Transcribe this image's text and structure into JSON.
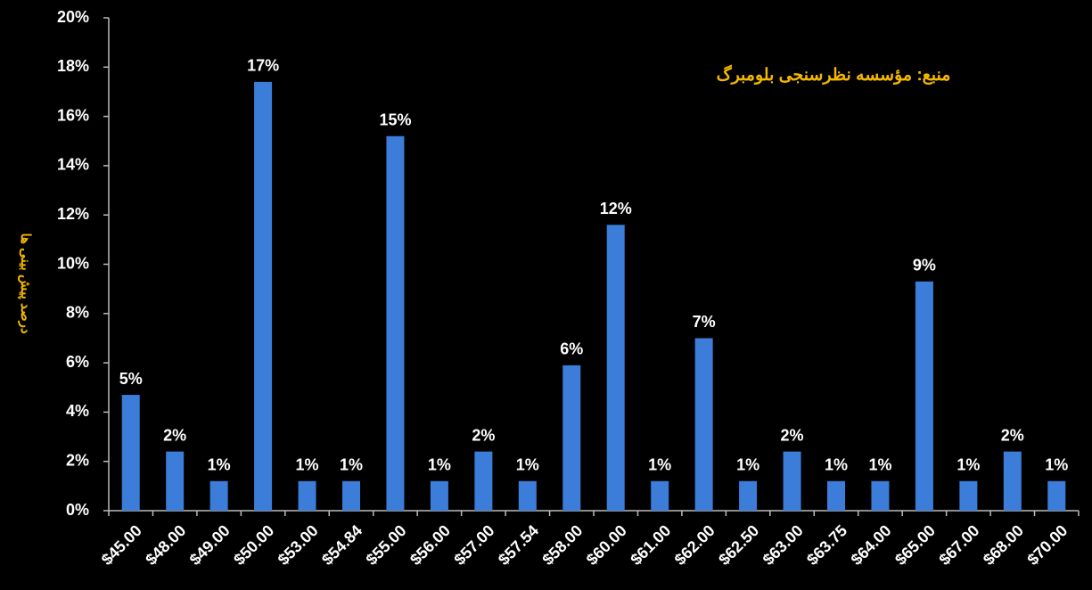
{
  "chart_data": {
    "type": "bar",
    "y_label": "درصد پیش بینی ها",
    "annotation": "منبع: مؤسسه نظرسنجی بلومبرگ",
    "categories": [
      "$45.00",
      "$48.00",
      "$49.00",
      "$50.00",
      "$53.00",
      "$54.84",
      "$55.00",
      "$56.00",
      "$57.00",
      "$57.54",
      "$58.00",
      "$60.00",
      "$61.00",
      "$62.00",
      "$62.50",
      "$63.00",
      "$63.75",
      "$64.00",
      "$65.00",
      "$67.00",
      "$68.00",
      "$70.00"
    ],
    "values": [
      4.7,
      2.4,
      1.2,
      17.4,
      1.2,
      1.2,
      15.2,
      1.2,
      2.4,
      1.2,
      5.9,
      11.6,
      1.2,
      7.0,
      1.2,
      2.4,
      1.2,
      1.2,
      9.3,
      1.2,
      2.4,
      1.2
    ],
    "value_labels": [
      "5%",
      "2%",
      "1%",
      "17%",
      "1%",
      "1%",
      "15%",
      "1%",
      "2%",
      "1%",
      "6%",
      "12%",
      "1%",
      "7%",
      "1%",
      "2%",
      "1%",
      "1%",
      "9%",
      "1%",
      "2%",
      "1%"
    ],
    "color": "#3b7dd8",
    "ylim": [
      0,
      20
    ],
    "yticks": [
      {
        "value": 0,
        "label": "0%"
      },
      {
        "value": 2,
        "label": "2%"
      },
      {
        "value": 4,
        "label": "4%"
      },
      {
        "value": 6,
        "label": "6%"
      },
      {
        "value": 8,
        "label": "8%"
      },
      {
        "value": 10,
        "label": "10%"
      },
      {
        "value": 12,
        "label": "12%"
      },
      {
        "value": 14,
        "label": "14%"
      },
      {
        "value": 16,
        "label": "16%"
      },
      {
        "value": 18,
        "label": "18%"
      },
      {
        "value": 20,
        "label": "20%"
      }
    ],
    "grid": false
  }
}
